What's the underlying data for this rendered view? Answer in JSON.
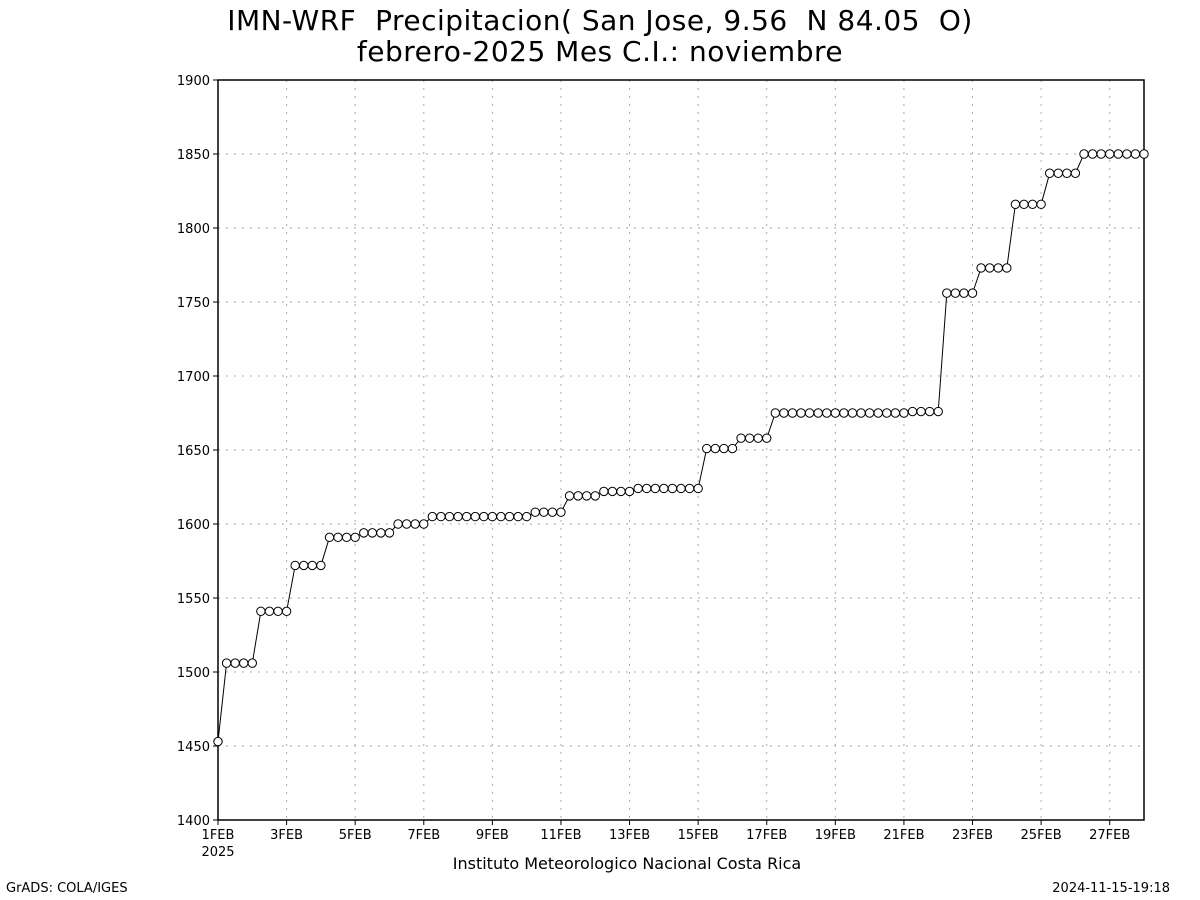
{
  "title_line1": "IMN-WRF  Precipitacion( San Jose, 9.56  N 84.05  O)",
  "title_line2": "febrero-2025 Mes C.I.: noviembre",
  "footer": {
    "institution": "Instituto Meteorologico Nacional Costa Rica",
    "left": "GrADS: COLA/IGES",
    "right": "2024-11-15-19:18"
  },
  "colors": {
    "line": "#000000",
    "marker_fill": "#ffffff",
    "grid": "#aaaaaa",
    "background": "#ffffff"
  },
  "chart_data": {
    "type": "line",
    "marker": "open-circle",
    "grid": true,
    "x_unit": "6-hourly steps from 1 Feb 2025 00Z",
    "xlim": [
      0,
      108
    ],
    "ylim": [
      1400,
      1900
    ],
    "yticks": [
      1400,
      1450,
      1500,
      1550,
      1600,
      1650,
      1700,
      1750,
      1800,
      1850,
      1900
    ],
    "xtick_labels": [
      "1FEB",
      "3FEB",
      "5FEB",
      "7FEB",
      "9FEB",
      "11FEB",
      "13FEB",
      "15FEB",
      "17FEB",
      "19FEB",
      "21FEB",
      "23FEB",
      "25FEB",
      "27FEB"
    ],
    "xtick_steps": [
      0,
      8,
      16,
      24,
      32,
      40,
      48,
      56,
      64,
      72,
      80,
      88,
      96,
      104
    ],
    "xtick_sublabel": "2025",
    "values": [
      1453,
      1506,
      1506,
      1506,
      1506,
      1541,
      1541,
      1541,
      1541,
      1572,
      1572,
      1572,
      1572,
      1591,
      1591,
      1591,
      1591,
      1594,
      1594,
      1594,
      1594,
      1600,
      1600,
      1600,
      1600,
      1605,
      1605,
      1605,
      1605,
      1605,
      1605,
      1605,
      1605,
      1605,
      1605,
      1605,
      1605,
      1608,
      1608,
      1608,
      1608,
      1619,
      1619,
      1619,
      1619,
      1622,
      1622,
      1622,
      1622,
      1624,
      1624,
      1624,
      1624,
      1624,
      1624,
      1624,
      1624,
      1651,
      1651,
      1651,
      1651,
      1658,
      1658,
      1658,
      1658,
      1675,
      1675,
      1675,
      1675,
      1675,
      1675,
      1675,
      1675,
      1675,
      1675,
      1675,
      1675,
      1675,
      1675,
      1675,
      1675,
      1676,
      1676,
      1676,
      1676,
      1756,
      1756,
      1756,
      1756,
      1773,
      1773,
      1773,
      1773,
      1816,
      1816,
      1816,
      1816,
      1837,
      1837,
      1837,
      1837,
      1850,
      1850,
      1850,
      1850,
      1850,
      1850,
      1850,
      1850
    ]
  }
}
